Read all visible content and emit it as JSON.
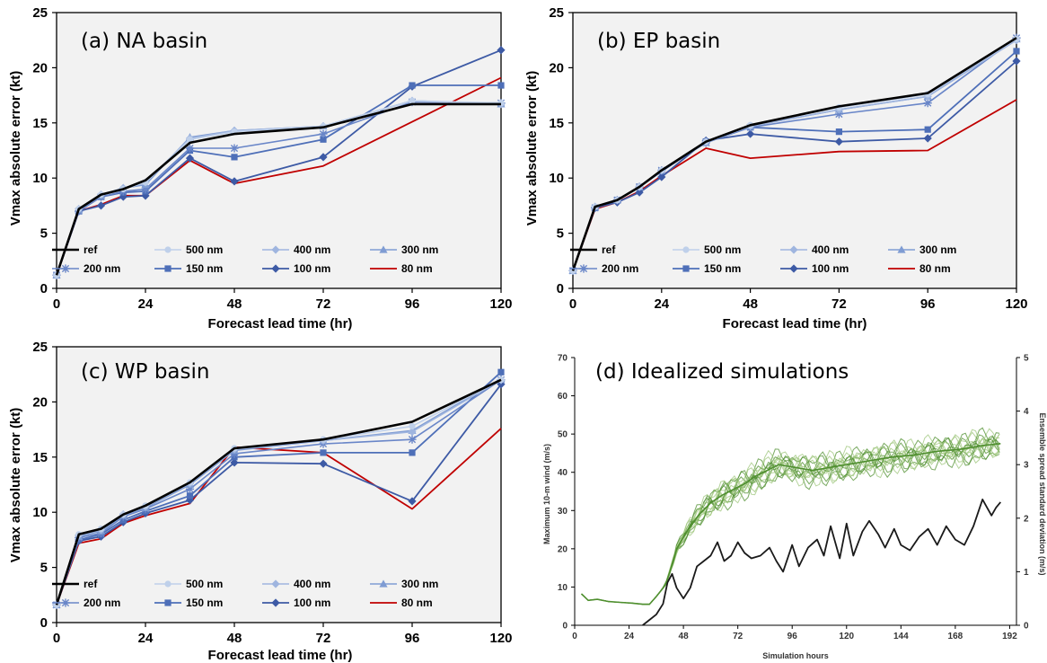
{
  "chart_data": [
    {
      "type": "line",
      "title": "(a) NA basin",
      "xlabel": "Forecast lead time (hr)",
      "ylabel": "Vmax absolute error (kt)",
      "xticks": [
        0,
        24,
        48,
        72,
        96,
        120
      ],
      "yticks": [
        0,
        5,
        10,
        15,
        20,
        25
      ],
      "xlim": [
        0,
        120
      ],
      "ylim": [
        0,
        25
      ],
      "x": [
        0,
        6,
        12,
        18,
        24,
        36,
        48,
        72,
        96,
        120
      ],
      "series": [
        {
          "name": "ref",
          "values": [
            1.2,
            7.2,
            8.5,
            9.0,
            9.8,
            13.2,
            14.0,
            14.6,
            16.7,
            16.7
          ]
        },
        {
          "name": "500 nm",
          "values": [
            1.2,
            7.2,
            8.5,
            9.0,
            9.6,
            13.5,
            14.2,
            14.7,
            17.0,
            16.8
          ]
        },
        {
          "name": "400 nm",
          "values": [
            1.2,
            7.2,
            8.5,
            9.1,
            9.6,
            13.6,
            14.3,
            14.7,
            17.0,
            16.7
          ]
        },
        {
          "name": "300 nm",
          "values": [
            1.2,
            7.1,
            8.4,
            9.1,
            9.4,
            13.7,
            14.3,
            14.7,
            17.0,
            16.7
          ]
        },
        {
          "name": "200 nm",
          "values": [
            1.2,
            7.0,
            8.3,
            8.8,
            9.0,
            12.7,
            12.7,
            14.0,
            16.9,
            16.8
          ]
        },
        {
          "name": "150 nm",
          "values": [
            1.2,
            7.0,
            8.3,
            8.7,
            8.8,
            12.5,
            11.9,
            13.5,
            18.4,
            18.4
          ]
        },
        {
          "name": "100 nm",
          "values": [
            1.2,
            7.0,
            7.5,
            8.3,
            8.4,
            11.8,
            9.7,
            11.9,
            18.3,
            21.6
          ]
        },
        {
          "name": "80 nm",
          "values": [
            1.2,
            7.0,
            7.6,
            8.4,
            8.4,
            11.6,
            9.5,
            11.1,
            15.1,
            19.1
          ]
        }
      ]
    },
    {
      "type": "line",
      "title": "(b) EP basin",
      "xlabel": "Forecast lead time (hr)",
      "ylabel": "Vmax absolute error (kt)",
      "xticks": [
        0,
        24,
        48,
        72,
        96,
        120
      ],
      "yticks": [
        0,
        5,
        10,
        15,
        20,
        25
      ],
      "xlim": [
        0,
        120
      ],
      "ylim": [
        0,
        25
      ],
      "x": [
        0,
        6,
        12,
        18,
        24,
        36,
        48,
        72,
        96,
        120
      ],
      "series": [
        {
          "name": "ref",
          "values": [
            1.6,
            7.4,
            8.0,
            9.2,
            10.7,
            13.3,
            14.8,
            16.5,
            17.7,
            22.7
          ]
        },
        {
          "name": "500 nm",
          "values": [
            1.6,
            7.4,
            8.0,
            9.2,
            10.7,
            13.3,
            14.8,
            16.4,
            17.6,
            22.6
          ]
        },
        {
          "name": "400 nm",
          "values": [
            1.6,
            7.4,
            8.0,
            9.2,
            10.7,
            13.3,
            14.7,
            16.2,
            17.4,
            22.5
          ]
        },
        {
          "name": "300 nm",
          "values": [
            1.6,
            7.4,
            8.0,
            9.2,
            10.7,
            13.2,
            14.7,
            16.2,
            17.4,
            22.6
          ]
        },
        {
          "name": "200 nm",
          "values": [
            1.6,
            7.3,
            8.0,
            9.2,
            10.7,
            13.2,
            14.6,
            15.8,
            16.8,
            22.7
          ]
        },
        {
          "name": "150 nm",
          "values": [
            1.6,
            7.3,
            8.0,
            9.2,
            10.6,
            13.3,
            14.6,
            14.2,
            14.4,
            21.5
          ]
        },
        {
          "name": "100 nm",
          "values": [
            1.6,
            7.3,
            7.8,
            8.7,
            10.1,
            13.4,
            14.0,
            13.3,
            13.6,
            20.6
          ]
        },
        {
          "name": "80 nm",
          "values": [
            1.6,
            7.2,
            7.8,
            8.8,
            10.2,
            12.7,
            11.8,
            12.4,
            12.5,
            17.1
          ]
        }
      ]
    },
    {
      "type": "line",
      "title": "(c) WP basin",
      "xlabel": "Forecast lead time (hr)",
      "ylabel": "Vmax absolute error (kt)",
      "xticks": [
        0,
        24,
        48,
        72,
        96,
        120
      ],
      "yticks": [
        0,
        5,
        10,
        15,
        20,
        25
      ],
      "xlim": [
        0,
        120
      ],
      "ylim": [
        0,
        25
      ],
      "x": [
        0,
        6,
        12,
        18,
        24,
        36,
        48,
        72,
        96,
        120
      ],
      "series": [
        {
          "name": "ref",
          "values": [
            1.6,
            8.0,
            8.5,
            9.8,
            10.6,
            12.7,
            15.8,
            16.6,
            18.2,
            22.0
          ]
        },
        {
          "name": "500 nm",
          "values": [
            1.6,
            8.0,
            8.5,
            9.8,
            10.6,
            12.7,
            15.8,
            16.6,
            17.8,
            22.0
          ]
        },
        {
          "name": "400 nm",
          "values": [
            1.6,
            7.9,
            8.4,
            9.8,
            10.5,
            12.6,
            15.7,
            16.5,
            17.3,
            22.0
          ]
        },
        {
          "name": "300 nm",
          "values": [
            1.6,
            7.8,
            8.3,
            9.7,
            10.4,
            12.5,
            15.6,
            16.5,
            17.4,
            22.1
          ]
        },
        {
          "name": "200 nm",
          "values": [
            1.6,
            7.7,
            8.1,
            9.6,
            10.3,
            12.1,
            15.3,
            16.2,
            16.6,
            22.0
          ]
        },
        {
          "name": "150 nm",
          "values": [
            1.6,
            7.5,
            8.0,
            9.3,
            10.1,
            11.5,
            15.0,
            15.4,
            15.4,
            22.7
          ]
        },
        {
          "name": "100 nm",
          "values": [
            1.6,
            7.4,
            7.8,
            9.1,
            9.9,
            11.1,
            14.5,
            14.4,
            11.0,
            21.6
          ]
        },
        {
          "name": "80 nm",
          "values": [
            1.6,
            7.2,
            7.6,
            9.0,
            9.7,
            10.8,
            15.9,
            15.4,
            10.3,
            17.6
          ]
        }
      ]
    },
    {
      "type": "line",
      "title": "(d) Idealized simulations",
      "xlabel": "Simulation hours",
      "ylabel": "Maximum 10-m wind (m/s)",
      "y2label": "Ensemble spread standard deviation (m/s)",
      "xticks": [
        0,
        24,
        48,
        72,
        96,
        120,
        144,
        168,
        192
      ],
      "yticks": [
        0,
        10,
        20,
        30,
        40,
        50,
        60,
        70
      ],
      "y2ticks": [
        0,
        1,
        2,
        3,
        4,
        5
      ],
      "xlim": [
        0,
        195
      ],
      "ylim": [
        0,
        70
      ],
      "y2lim": [
        0,
        5
      ],
      "series": [
        {
          "name": "",
          "axis": "left",
          "x": [
            3,
            6,
            10,
            15,
            20,
            25,
            30,
            33,
            36,
            38,
            40,
            42,
            45,
            50,
            55,
            60,
            65,
            70,
            75,
            80,
            85,
            90,
            95,
            100,
            105,
            110,
            120,
            130,
            140,
            150,
            160,
            170,
            180,
            188
          ],
          "values": [
            8.2,
            6.5,
            6.8,
            6.2,
            6.0,
            5.8,
            5.5,
            5.5,
            7.5,
            9.0,
            10.5,
            14.0,
            20.0,
            25.0,
            29.0,
            32.0,
            34.0,
            35.5,
            37.0,
            39.0,
            40.5,
            42.0,
            41.5,
            41.0,
            40.5,
            41.0,
            42.0,
            43.0,
            44.0,
            44.5,
            45.5,
            46.0,
            47.0,
            47.5
          ]
        },
        {
          "name": "",
          "axis": "right",
          "x": [
            30,
            33,
            36,
            39,
            41,
            43,
            45,
            48,
            51,
            54,
            57,
            60,
            63,
            66,
            69,
            72,
            75,
            78,
            82,
            86,
            89,
            92,
            96,
            99,
            103,
            107,
            110,
            113,
            117,
            120,
            123,
            127,
            130,
            134,
            137,
            141,
            144,
            148,
            152,
            156,
            160,
            164,
            168,
            172,
            176,
            180,
            182,
            184,
            186,
            188
          ],
          "values": [
            0.0,
            0.1,
            0.2,
            0.4,
            0.8,
            0.96,
            0.7,
            0.5,
            0.7,
            1.1,
            1.2,
            1.3,
            1.55,
            1.2,
            1.3,
            1.55,
            1.35,
            1.25,
            1.3,
            1.45,
            1.2,
            1.0,
            1.5,
            1.1,
            1.45,
            1.6,
            1.3,
            1.85,
            1.25,
            1.9,
            1.3,
            1.75,
            1.95,
            1.7,
            1.45,
            1.8,
            1.5,
            1.4,
            1.65,
            1.8,
            1.5,
            1.85,
            1.6,
            1.5,
            1.85,
            2.35,
            2.2,
            2.05,
            2.2,
            2.3
          ]
        }
      ]
    }
  ],
  "legend_styles": {
    "ref": {
      "color": "#000000",
      "marker": "none",
      "width": 2.6
    },
    "500 nm": {
      "color": "#bfd0ea",
      "marker": "circle",
      "width": 1.6
    },
    "400 nm": {
      "color": "#9fb5df",
      "marker": "diamond",
      "width": 1.6
    },
    "300 nm": {
      "color": "#7f9cd3",
      "marker": "triangle",
      "width": 1.6
    },
    "200 nm": {
      "color": "#6986c8",
      "marker": "star",
      "width": 1.6
    },
    "150 nm": {
      "color": "#4e6fb8",
      "marker": "square",
      "width": 1.8
    },
    "100 nm": {
      "color": "#3d5aa5",
      "marker": "diamond",
      "width": 1.8
    },
    "80 nm": {
      "color": "#c00000",
      "marker": "none",
      "width": 1.8
    }
  },
  "colors": {
    "plot_bg": "#f2f2f2",
    "green": "#4f8f2f",
    "green_light": "#9ec67b",
    "spread": "#1a1a1a"
  }
}
